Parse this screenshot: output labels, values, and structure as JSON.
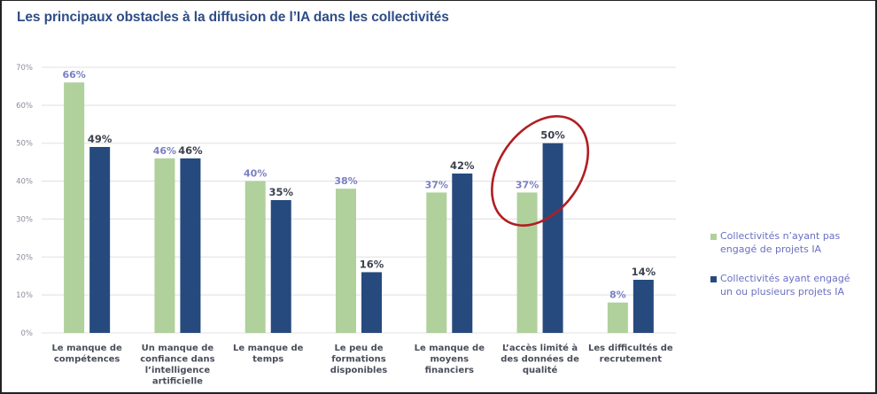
{
  "chart_data": {
    "type": "bar",
    "title": "Les principaux obstacles à la diffusion de l’IA dans les collectivités",
    "xlabel": "",
    "ylabel": "",
    "ylim": [
      0,
      70
    ],
    "yticks": [
      "0%",
      "10%",
      "20%",
      "30%",
      "40%",
      "50%",
      "60%",
      "70%"
    ],
    "ytick_values": [
      0,
      10,
      20,
      30,
      40,
      50,
      60,
      70
    ],
    "grid": true,
    "legend_position": "right",
    "categories": [
      [
        "Le manque de",
        "compétences"
      ],
      [
        "Un manque de",
        "confiance dans",
        "l’intelligence",
        "artificielle"
      ],
      [
        "Le manque de",
        "temps"
      ],
      [
        "Le peu de",
        "formations",
        "disponibles"
      ],
      [
        "Le manque de",
        "moyens",
        "financiers"
      ],
      [
        "L’accès limité à",
        "des données de",
        "qualité"
      ],
      [
        "Les difficultés de",
        "recrutement"
      ]
    ],
    "series": [
      {
        "name": "Collectivités n’ayant pas engagé de projets IA",
        "legend_lines": [
          "Collectivités n’ayant pas",
          "engagé de projets IA"
        ],
        "color": "#B0D09C",
        "label_color": "#7B7FC4",
        "values": [
          66,
          46,
          40,
          38,
          37,
          37,
          8
        ],
        "labels": [
          "66%",
          "46%",
          "40%",
          "38%",
          "37%",
          "37%",
          "8%"
        ]
      },
      {
        "name": "Collectivités ayant engagé un ou plusieurs projets IA",
        "legend_lines": [
          "Collectivités ayant engagé",
          "un ou plusieurs projets IA"
        ],
        "color": "#264A7E",
        "label_color": "#3D4250",
        "values": [
          49,
          46,
          35,
          16,
          42,
          50,
          14
        ],
        "labels": [
          "49%",
          "46%",
          "35%",
          "16%",
          "42%",
          "50%",
          "14%"
        ]
      }
    ],
    "annotations": [
      {
        "type": "ellipse-highlight",
        "category_index": 5,
        "color": "#B01E23"
      }
    ]
  },
  "colors": {
    "title": "#2F4D86",
    "grid": "#E6E6E6",
    "highlight": "#B01E23"
  }
}
